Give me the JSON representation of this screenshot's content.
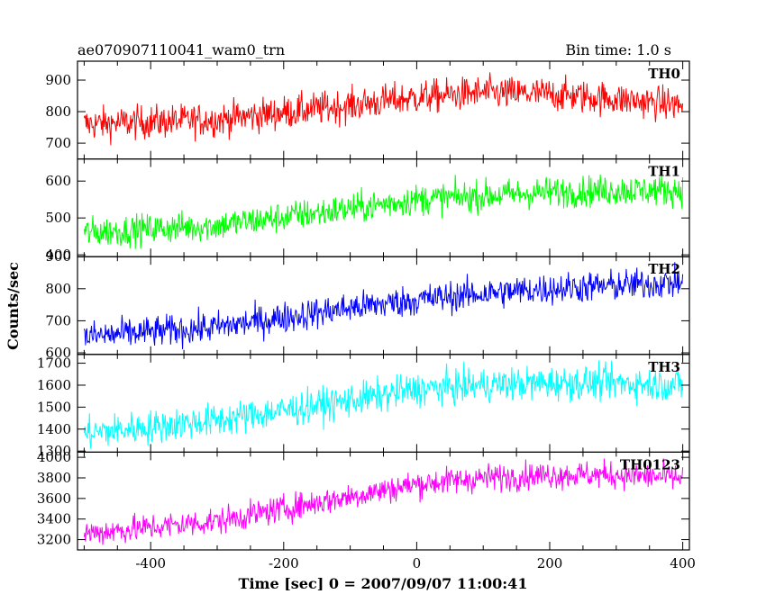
{
  "chart_data": {
    "type": "line",
    "title_left": "ae070907110041_wam0_trn",
    "title_right": "Bin time: 1.0 s",
    "xlabel": "Time [sec] 0 = 2007/09/07 11:00:41",
    "ylabel": "Counts/sec",
    "xlim": [
      -510,
      410
    ],
    "x_ticks": [
      -400,
      -200,
      0,
      200,
      400
    ],
    "x_step": 1,
    "panels": [
      {
        "name": "TH0",
        "color": "#ff0000",
        "ylim": [
          650,
          960
        ],
        "y_ticks": [
          700,
          800,
          900
        ],
        "trend_x": [
          -500,
          -300,
          -100,
          0,
          100,
          200,
          300,
          400
        ],
        "trend_y": [
          760,
          775,
          820,
          845,
          860,
          855,
          840,
          820
        ],
        "noise": 38
      },
      {
        "name": "TH1",
        "color": "#00ff00",
        "ylim": [
          395,
          660
        ],
        "y_ticks": [
          400,
          500,
          600
        ],
        "trend_x": [
          -500,
          -300,
          -100,
          0,
          100,
          200,
          300,
          400
        ],
        "trend_y": [
          460,
          480,
          525,
          550,
          560,
          570,
          575,
          575
        ],
        "noise": 30
      },
      {
        "name": "TH2",
        "color": "#0000ff",
        "ylim": [
          595,
          900
        ],
        "y_ticks": [
          600,
          700,
          800,
          900
        ],
        "trend_x": [
          -500,
          -300,
          -100,
          0,
          100,
          200,
          300,
          400
        ],
        "trend_y": [
          650,
          680,
          740,
          765,
          785,
          800,
          810,
          820
        ],
        "noise": 35
      },
      {
        "name": "TH3",
        "color": "#00ffff",
        "ylim": [
          1295,
          1740
        ],
        "y_ticks": [
          1300,
          1400,
          1500,
          1600,
          1700
        ],
        "trend_x": [
          -500,
          -300,
          -100,
          0,
          100,
          200,
          300,
          400
        ],
        "trend_y": [
          1380,
          1440,
          1530,
          1580,
          1600,
          1610,
          1610,
          1600
        ],
        "noise": 55
      },
      {
        "name": "TH0123",
        "color": "#ff00ff",
        "ylim": [
          3100,
          4050
        ],
        "y_ticks": [
          3200,
          3400,
          3600,
          3800,
          4000
        ],
        "trend_x": [
          -500,
          -300,
          -100,
          0,
          100,
          200,
          300,
          400
        ],
        "trend_y": [
          3260,
          3380,
          3620,
          3740,
          3800,
          3830,
          3830,
          3800
        ],
        "noise": 95
      }
    ]
  }
}
